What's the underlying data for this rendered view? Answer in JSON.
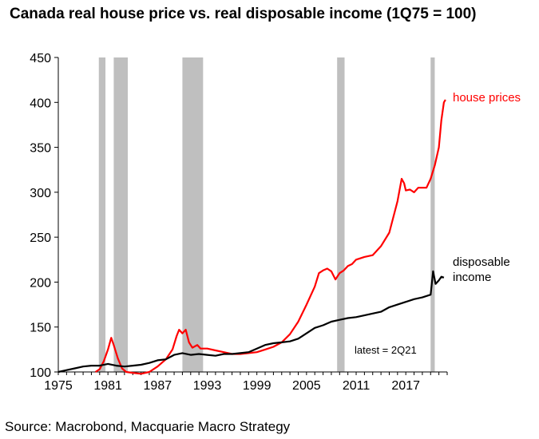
{
  "chart_data": {
    "type": "line",
    "title": "Canada real house price vs. real disposable income (1Q75 = 100)",
    "xlabel": "",
    "ylabel": "",
    "ylim": [
      100,
      450
    ],
    "xlim": [
      1975,
      2022
    ],
    "x_ticks": [
      1975,
      1981,
      1987,
      1993,
      1999,
      2005,
      2011,
      2017
    ],
    "y_ticks": [
      100,
      150,
      200,
      250,
      300,
      350,
      400,
      450
    ],
    "recessions": [
      [
        1979.9,
        1980.7
      ],
      [
        1981.7,
        1983.4
      ],
      [
        1990.0,
        1992.5
      ],
      [
        2008.7,
        2009.6
      ],
      [
        2020.0,
        2020.5
      ]
    ],
    "series": [
      {
        "name": "house prices",
        "color": "#ff0000",
        "points": [
          [
            1979.5,
            100
          ],
          [
            1980.0,
            103
          ],
          [
            1980.5,
            112
          ],
          [
            1981.0,
            125
          ],
          [
            1981.4,
            138
          ],
          [
            1981.7,
            130
          ],
          [
            1982.2,
            115
          ],
          [
            1982.7,
            104
          ],
          [
            1983.2,
            100
          ],
          [
            1984.0,
            99
          ],
          [
            1985.0,
            98
          ],
          [
            1986.0,
            100
          ],
          [
            1987.0,
            106
          ],
          [
            1988.0,
            114
          ],
          [
            1988.8,
            125
          ],
          [
            1989.3,
            140
          ],
          [
            1989.6,
            147
          ],
          [
            1990.0,
            143
          ],
          [
            1990.4,
            147
          ],
          [
            1990.8,
            133
          ],
          [
            1991.2,
            127
          ],
          [
            1991.8,
            130
          ],
          [
            1992.2,
            126
          ],
          [
            1993.0,
            126
          ],
          [
            1994.0,
            124
          ],
          [
            1995.0,
            122
          ],
          [
            1996.0,
            120
          ],
          [
            1997.0,
            120
          ],
          [
            1998.0,
            121
          ],
          [
            1999.0,
            122
          ],
          [
            2000.0,
            125
          ],
          [
            2001.0,
            128
          ],
          [
            2002.0,
            133
          ],
          [
            2003.0,
            142
          ],
          [
            2004.0,
            156
          ],
          [
            2005.0,
            175
          ],
          [
            2006.0,
            195
          ],
          [
            2006.5,
            210
          ],
          [
            2007.0,
            213
          ],
          [
            2007.5,
            215
          ],
          [
            2008.0,
            212
          ],
          [
            2008.5,
            203
          ],
          [
            2009.0,
            210
          ],
          [
            2009.5,
            213
          ],
          [
            2010.0,
            218
          ],
          [
            2010.5,
            220
          ],
          [
            2011.0,
            225
          ],
          [
            2012.0,
            228
          ],
          [
            2013.0,
            230
          ],
          [
            2014.0,
            240
          ],
          [
            2015.0,
            255
          ],
          [
            2016.0,
            290
          ],
          [
            2016.5,
            315
          ],
          [
            2016.8,
            310
          ],
          [
            2017.0,
            302
          ],
          [
            2017.5,
            303
          ],
          [
            2018.0,
            300
          ],
          [
            2018.5,
            305
          ],
          [
            2019.0,
            305
          ],
          [
            2019.5,
            305
          ],
          [
            2020.0,
            315
          ],
          [
            2020.5,
            330
          ],
          [
            2021.0,
            350
          ],
          [
            2021.3,
            380
          ],
          [
            2021.6,
            400
          ],
          [
            2021.8,
            403
          ]
        ]
      },
      {
        "name": "disposable income",
        "color": "#000000",
        "points": [
          [
            1975.0,
            100
          ],
          [
            1976.0,
            102
          ],
          [
            1977.0,
            104
          ],
          [
            1978.0,
            106
          ],
          [
            1979.0,
            107
          ],
          [
            1980.0,
            107
          ],
          [
            1981.0,
            109
          ],
          [
            1982.0,
            107
          ],
          [
            1983.0,
            106
          ],
          [
            1984.0,
            107
          ],
          [
            1985.0,
            108
          ],
          [
            1986.0,
            110
          ],
          [
            1987.0,
            113
          ],
          [
            1988.0,
            114
          ],
          [
            1989.0,
            119
          ],
          [
            1990.0,
            121
          ],
          [
            1991.0,
            119
          ],
          [
            1992.0,
            120
          ],
          [
            1993.0,
            119
          ],
          [
            1994.0,
            118
          ],
          [
            1995.0,
            120
          ],
          [
            1996.0,
            120
          ],
          [
            1997.0,
            121
          ],
          [
            1998.0,
            122
          ],
          [
            1999.0,
            126
          ],
          [
            2000.0,
            130
          ],
          [
            2001.0,
            132
          ],
          [
            2002.0,
            133
          ],
          [
            2003.0,
            134
          ],
          [
            2004.0,
            137
          ],
          [
            2005.0,
            143
          ],
          [
            2006.0,
            149
          ],
          [
            2007.0,
            152
          ],
          [
            2008.0,
            156
          ],
          [
            2009.0,
            158
          ],
          [
            2010.0,
            160
          ],
          [
            2011.0,
            161
          ],
          [
            2012.0,
            163
          ],
          [
            2013.0,
            165
          ],
          [
            2014.0,
            167
          ],
          [
            2015.0,
            172
          ],
          [
            2016.0,
            175
          ],
          [
            2017.0,
            178
          ],
          [
            2018.0,
            181
          ],
          [
            2019.0,
            183
          ],
          [
            2020.0,
            186
          ],
          [
            2020.3,
            212
          ],
          [
            2020.6,
            198
          ],
          [
            2021.0,
            202
          ],
          [
            2021.3,
            206
          ],
          [
            2021.6,
            205
          ]
        ]
      }
    ],
    "annotation": "latest = 2Q21"
  },
  "labels": {
    "house_prices_line1": "house prices",
    "income_line1": "disposable",
    "income_line2": "income"
  },
  "source": "Source: Macrobond, Macquarie Macro Strategy"
}
